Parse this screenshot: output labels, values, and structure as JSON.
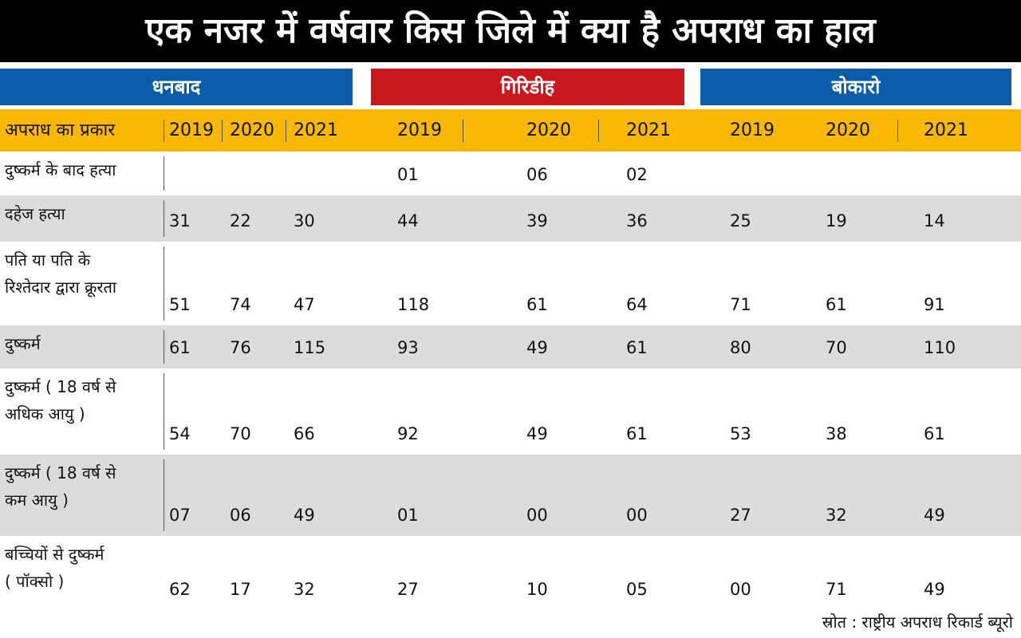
{
  "title": "एक नजर में वर्षवार किस जिले में क्या है अपराध का हाल",
  "districts": [
    {
      "name": "धनबाद",
      "years": [
        2019,
        2020,
        2021
      ]
    },
    {
      "name": "गिरिडीह",
      "years": [
        2019,
        2020,
        2021
      ]
    },
    {
      "name": "बोकारो",
      "years": [
        2019,
        2020,
        2021
      ]
    }
  ],
  "table": {
    "header": "अपराध का प्रकार",
    "rows": [
      {
        "label": "दुष्कर्म के बाद हत्या",
        "values": [
          null,
          null,
          null,
          "01",
          "06",
          "02",
          null,
          null,
          null
        ]
      },
      {
        "label": "दहेज हत्या",
        "values": [
          "31",
          "22",
          "30",
          "44",
          "39",
          "36",
          "25",
          "19",
          "14"
        ]
      },
      {
        "label": "पति या पति के\nरिश्तेदार द्वारा क्रूरता",
        "values": [
          "51",
          "74",
          "47",
          "118",
          "61",
          "64",
          "71",
          "61",
          "91"
        ]
      },
      {
        "label": "दुष्कर्म",
        "values": [
          "61",
          "76",
          "115",
          "93",
          "49",
          "61",
          "80",
          "70",
          "110"
        ]
      },
      {
        "label": "दुष्कर्म ( 18 वर्ष से\nअधिक आयु )",
        "values": [
          "54",
          "70",
          "66",
          "92",
          "49",
          "61",
          "53",
          "38",
          "61"
        ]
      },
      {
        "label": "दुष्कर्म ( 18 वर्ष से\nकम आयु )",
        "values": [
          "07",
          "06",
          "49",
          "01",
          "00",
          "00",
          "27",
          "32",
          "49"
        ]
      },
      {
        "label": "बच्चियों से  दुष्कर्म\n( पॉक्सो )",
        "values": [
          "62",
          "17",
          "32",
          "27",
          "10",
          "05",
          "00",
          "71",
          "49"
        ]
      }
    ]
  },
  "source": "स्रोत : राष्ट्रीय अपराध रिकार्ड ब्यूरो"
}
